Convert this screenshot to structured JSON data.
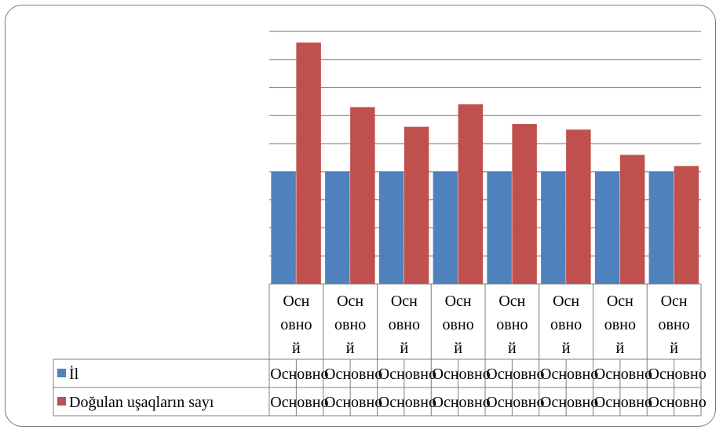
{
  "chart_data": {
    "type": "bar",
    "title": "",
    "xlabel": "",
    "ylabel": "",
    "categories": [
      "Основной",
      "Основной",
      "Основной",
      "Основной",
      "Основной",
      "Основной",
      "Основной",
      "Основной"
    ],
    "category_lines": [
      "Осн",
      "овно",
      "й"
    ],
    "ylim": [
      0,
      9
    ],
    "grid": true,
    "legend": "table-left",
    "series": [
      {
        "name": "İl",
        "color": "#4f81bd",
        "values": [
          4,
          4,
          4,
          4,
          4,
          4,
          4,
          4
        ],
        "table_cells": [
          "Основно",
          "Основно",
          "Основно",
          "Основно",
          "Основно",
          "Основно",
          "Основно",
          "Основно"
        ]
      },
      {
        "name": "Doğulan uşaqların sayı",
        "color": "#c0504d",
        "values": [
          8.6,
          6.3,
          5.6,
          6.4,
          5.7,
          5.5,
          4.6,
          4.2
        ],
        "table_cells": [
          "Основно",
          "Основно",
          "Основно",
          "Основно",
          "Основно",
          "Основно",
          "Основно",
          "Основно"
        ]
      }
    ]
  }
}
